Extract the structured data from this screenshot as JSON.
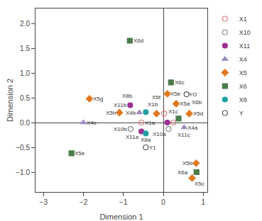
{
  "chart_data": {
    "type": "scatter",
    "xlabel": "Dimension 1",
    "ylabel": "Dimension 2",
    "xlim": [
      -3.2,
      1.1
    ],
    "ylim": [
      -1.4,
      2.3
    ],
    "xticks": [
      -3,
      -2,
      -1,
      0,
      1
    ],
    "yticks": [
      {
        "value": -1.0,
        "label": "−1.0"
      },
      {
        "value": -0.5,
        "label": "−0.5"
      },
      {
        "value": 0.0,
        "label": "0.0"
      },
      {
        "value": 0.5,
        "label": "0.5"
      },
      {
        "value": 1.0,
        "label": "1.0"
      },
      {
        "value": 1.5,
        "label": "1.5"
      },
      {
        "value": 2.0,
        "label": "2.0"
      }
    ],
    "grid": false,
    "legend": "upper right",
    "series": [
      {
        "name": "X1",
        "color": "#e07878",
        "marker": "circle-open",
        "x": [
          0.02,
          -0.55,
          0.25
        ],
        "values": [
          0.18,
          0.0,
          0.0
        ],
        "labels": [
          "X1b",
          "X1a",
          "X1c"
        ]
      },
      {
        "name": "X10",
        "color": "#888888",
        "marker": "circle-open",
        "x": [
          0.13,
          -0.82
        ],
        "values": [
          -0.13,
          -0.13
        ],
        "labels": [
          "X10a",
          "X10b"
        ]
      },
      {
        "name": "X11",
        "color": "#9b3090",
        "marker": "circle",
        "x": [
          -0.83,
          -0.55,
          0.1
        ],
        "values": [
          0.35,
          -0.18,
          0.0
        ],
        "labels": [
          "X11b",
          "X11a",
          "X11c"
        ]
      },
      {
        "name": "X4",
        "color": "#9b88c0",
        "marker": "triangle-up",
        "x": [
          -0.6,
          -2.0,
          0.52
        ],
        "values": [
          0.2,
          0.0,
          -0.1
        ],
        "labels": [
          "X4b",
          "X4c",
          "X4a"
        ]
      },
      {
        "name": "X5",
        "color": "#e07820",
        "marker": "diamond",
        "x": [
          -1.85,
          -1.1,
          0.1,
          0.32,
          -0.17,
          0.65,
          0.82,
          0.72
        ],
        "values": [
          0.48,
          0.2,
          0.58,
          0.38,
          0.18,
          0.18,
          -0.82,
          -1.12
        ],
        "labels": [
          "X5g",
          "X5h",
          "X5e",
          "X5a",
          "X5f",
          "X5d",
          "X5b",
          "X5c"
        ]
      },
      {
        "name": "X6",
        "color": "#4a7c4a",
        "marker": "square",
        "x": [
          -0.84,
          0.19,
          0.38,
          -2.3,
          0.83
        ],
        "values": [
          1.65,
          0.81,
          0.08,
          -0.62,
          -1.0
        ],
        "labels": [
          "X6d",
          "X6c",
          "X6b",
          "X5e",
          "X6a"
        ]
      },
      {
        "name": "X8",
        "color": "#20a0a0",
        "marker": "circle",
        "x": [
          -0.44,
          -0.44
        ],
        "values": [
          0.21,
          -0.22
        ],
        "labels": [
          "X8b",
          "X8a"
        ]
      },
      {
        "name": "Y",
        "color": "#555555",
        "marker": "circle-open",
        "x": [
          0.58,
          -0.44
        ],
        "values": [
          0.57,
          -0.5
        ],
        "labels": [
          "YO",
          "Y1"
        ]
      }
    ]
  }
}
